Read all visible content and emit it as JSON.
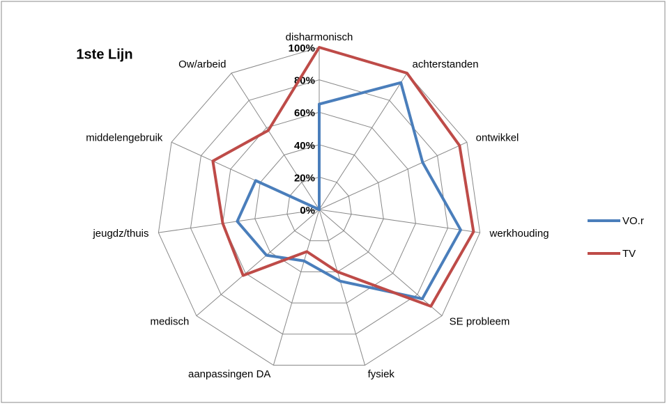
{
  "chart_data": {
    "type": "radar",
    "title": "1ste Lijn",
    "categories": [
      "disharmonisch",
      "achterstanden",
      "ontwikkel",
      "werkhouding",
      "SE probleem",
      "fysiek",
      "aanpassingen DA",
      "medisch",
      "jeugdz/thuis",
      "middelengebruik",
      "Ow/arbeid"
    ],
    "series": [
      {
        "name": "VO.r",
        "color": "#4a7ebb",
        "values": [
          65,
          93,
          70,
          88,
          84,
          46,
          33,
          43,
          51,
          43,
          0
        ]
      },
      {
        "name": "TV",
        "color": "#be4b48",
        "values": [
          100,
          100,
          95,
          96,
          91,
          40,
          27,
          62,
          60,
          72,
          58
        ]
      }
    ],
    "ylim": [
      0,
      100
    ],
    "yticks": [
      {
        "value": 0,
        "label": "0%"
      },
      {
        "value": 20,
        "label": "20%"
      },
      {
        "value": 40,
        "label": "40%"
      },
      {
        "value": 60,
        "label": "60%"
      },
      {
        "value": 80,
        "label": "80%"
      },
      {
        "value": 100,
        "label": "100%"
      }
    ],
    "grid": true,
    "legend": "right"
  }
}
